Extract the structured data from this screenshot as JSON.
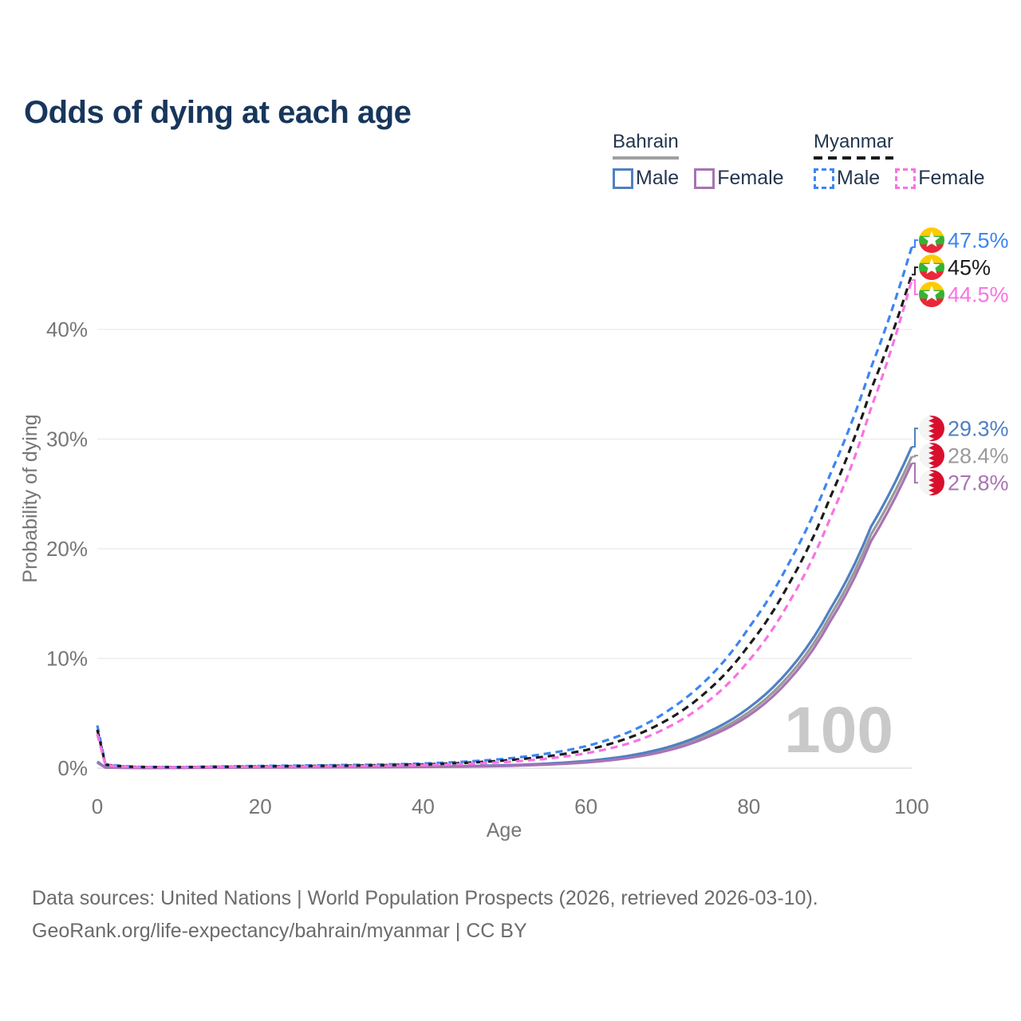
{
  "title": "Odds of dying at each age",
  "watermark": "100",
  "legend": {
    "groups": [
      {
        "label": "Bahrain",
        "line_style": "solid",
        "underline_color": "#a0a0a0",
        "items": [
          {
            "label": "Male",
            "color": "#5080c2"
          },
          {
            "label": "Female",
            "color": "#a873b3"
          }
        ]
      },
      {
        "label": "Myanmar",
        "line_style": "dashed",
        "underline_color": "#1b1b1b",
        "items": [
          {
            "label": "Male",
            "color": "#3d85f3"
          },
          {
            "label": "Female",
            "color": "#f873e2"
          }
        ]
      }
    ]
  },
  "footer": {
    "line1": "Data sources: United Nations | World Population Prospects (2026, retrieved 2026-03-10).",
    "line2": "GeoRank.org/life-expectancy/bahrain/myanmar | CC BY"
  },
  "chart_data": {
    "type": "line",
    "title": "Odds of dying at each age",
    "xlabel": "Age",
    "ylabel": "Probability of dying",
    "xlim": [
      0,
      100
    ],
    "ylim": [
      0,
      48
    ],
    "grid": "horizontal",
    "x_ticks": [
      {
        "value": 0,
        "label": "0"
      },
      {
        "value": 20,
        "label": "20"
      },
      {
        "value": 40,
        "label": "40"
      },
      {
        "value": 60,
        "label": "60"
      },
      {
        "value": 80,
        "label": "80"
      },
      {
        "value": 100,
        "label": "100"
      }
    ],
    "y_ticks": [
      {
        "value": 0,
        "label": "0%"
      },
      {
        "value": 10,
        "label": "10%"
      },
      {
        "value": 20,
        "label": "20%"
      },
      {
        "value": 30,
        "label": "30%"
      },
      {
        "value": 40,
        "label": "40%"
      }
    ],
    "ages": [
      0,
      1,
      5,
      10,
      15,
      20,
      25,
      30,
      35,
      40,
      45,
      50,
      55,
      60,
      65,
      70,
      75,
      80,
      85,
      90,
      95,
      100
    ],
    "series": [
      {
        "id": "bahrain-all",
        "country": "Bahrain",
        "kind": "combined",
        "color": "#9a9a9a",
        "dash": "solid",
        "end_label": "28.4%",
        "values": [
          0.55,
          0.055,
          0.028,
          0.035,
          0.05,
          0.07,
          0.08,
          0.09,
          0.1,
          0.125,
          0.16,
          0.23,
          0.36,
          0.58,
          1.0,
          1.75,
          3.05,
          5.1,
          8.5,
          13.9,
          21.3,
          28.4
        ]
      },
      {
        "id": "bahrain-male",
        "country": "Bahrain",
        "kind": "male",
        "color": "#5080c2",
        "dash": "solid",
        "end_label": "29.3%",
        "values": [
          0.6,
          0.06,
          0.03,
          0.04,
          0.06,
          0.08,
          0.09,
          0.1,
          0.11,
          0.14,
          0.18,
          0.26,
          0.4,
          0.65,
          1.1,
          1.9,
          3.3,
          5.5,
          9.0,
          14.5,
          22.0,
          29.3
        ]
      },
      {
        "id": "bahrain-female",
        "country": "Bahrain",
        "kind": "female",
        "color": "#a873b3",
        "dash": "solid",
        "end_label": "27.8%",
        "values": [
          0.5,
          0.05,
          0.025,
          0.03,
          0.045,
          0.06,
          0.07,
          0.08,
          0.09,
          0.11,
          0.14,
          0.2,
          0.32,
          0.52,
          0.9,
          1.6,
          2.85,
          4.8,
          8.1,
          13.4,
          20.7,
          27.8
        ]
      },
      {
        "id": "myanmar-male",
        "country": "Myanmar",
        "kind": "male",
        "color": "#3d85f3",
        "dash": "dashed",
        "end_label": "47.5%",
        "values": [
          3.9,
          0.35,
          0.12,
          0.1,
          0.15,
          0.2,
          0.24,
          0.28,
          0.33,
          0.42,
          0.58,
          0.85,
          1.3,
          2.0,
          3.2,
          5.2,
          8.2,
          12.8,
          18.8,
          26.8,
          36.5,
          47.5
        ]
      },
      {
        "id": "myanmar-all",
        "country": "Myanmar",
        "kind": "combined",
        "color": "#1b1b1b",
        "dash": "dashed",
        "end_label": "45%",
        "values": [
          3.5,
          0.31,
          0.1,
          0.09,
          0.12,
          0.16,
          0.19,
          0.22,
          0.27,
          0.34,
          0.47,
          0.7,
          1.05,
          1.65,
          2.7,
          4.4,
          7.1,
          11.2,
          16.9,
          24.7,
          34.5,
          45.0
        ]
      },
      {
        "id": "myanmar-female",
        "country": "Myanmar",
        "kind": "female",
        "color": "#f873e2",
        "dash": "dashed",
        "end_label": "44.5%",
        "values": [
          3.1,
          0.27,
          0.09,
          0.08,
          0.1,
          0.13,
          0.15,
          0.17,
          0.21,
          0.27,
          0.37,
          0.55,
          0.85,
          1.35,
          2.2,
          3.7,
          6.1,
          9.8,
          15.2,
          22.8,
          32.8,
          44.5
        ]
      }
    ]
  }
}
